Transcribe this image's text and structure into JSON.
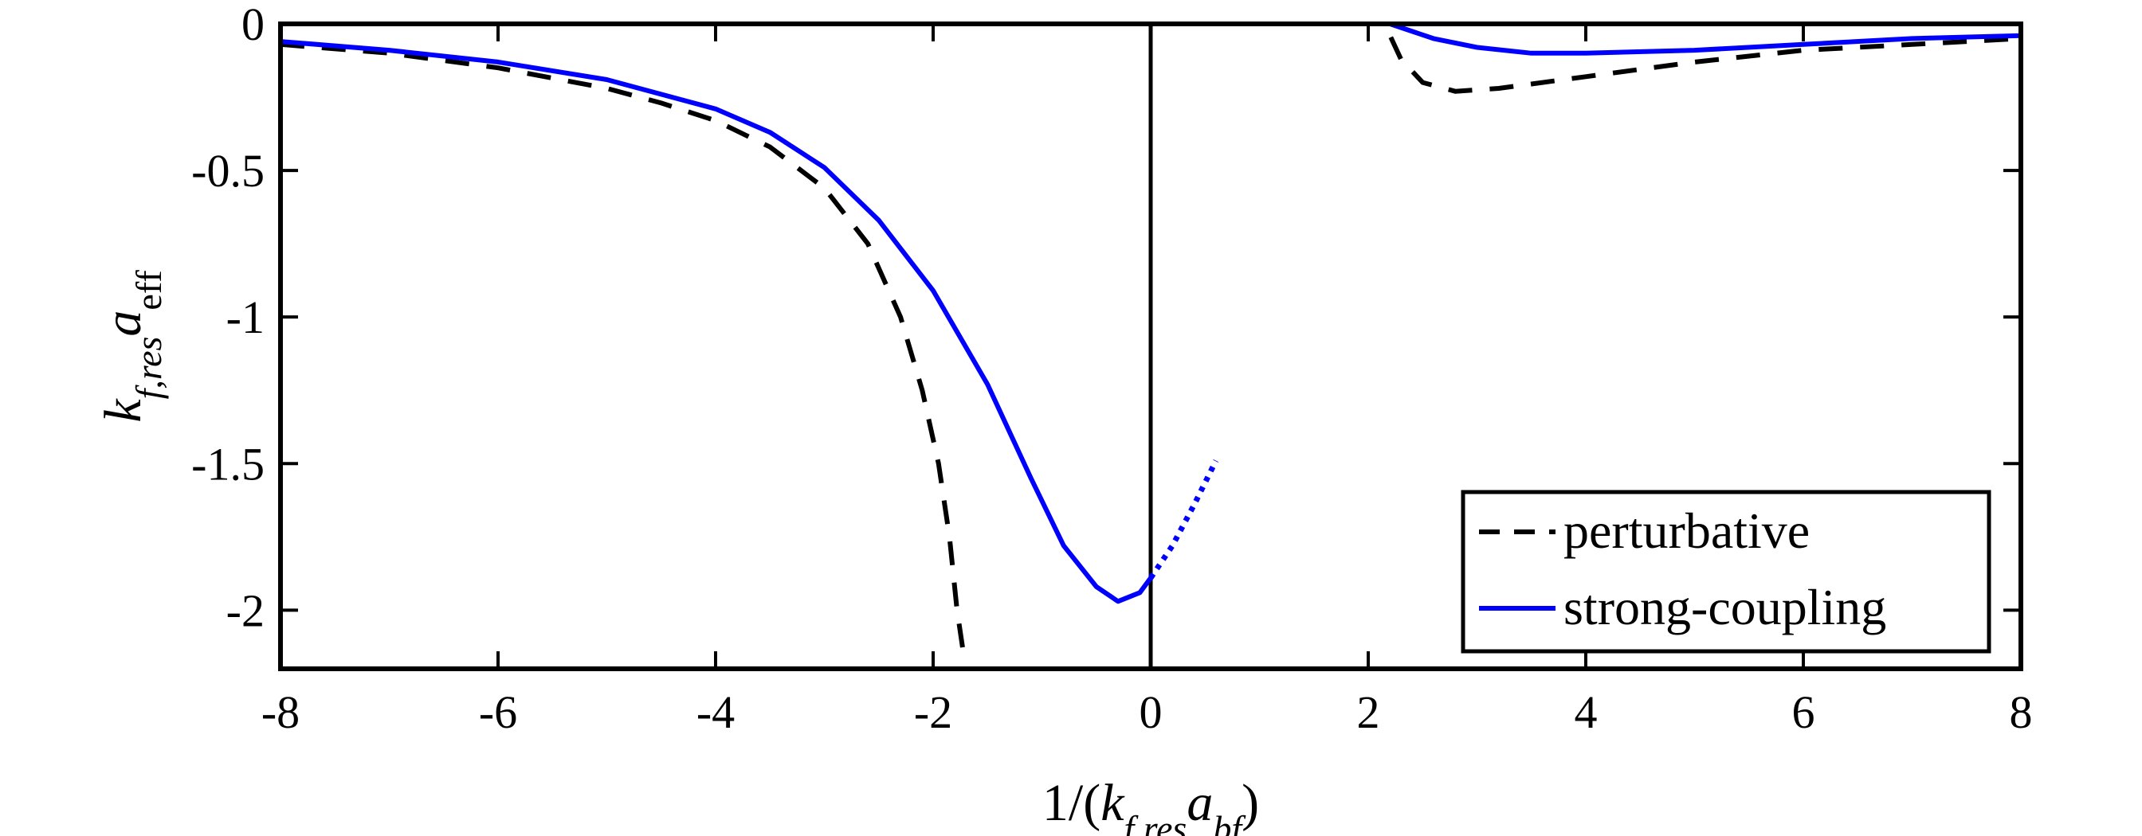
{
  "chart_data": {
    "type": "line",
    "title": "",
    "xlabel": "1/(k_{f,res} a_{bf})",
    "ylabel": "k_{f,res} a_{eff}",
    "xlim": [
      -8,
      8
    ],
    "ylim": [
      -2.2,
      0
    ],
    "xticks": [
      -8,
      -6,
      -4,
      -2,
      0,
      2,
      4,
      6,
      8
    ],
    "xtick_labels": [
      "-8",
      "-6",
      "-4",
      "-2",
      "0",
      "2",
      "4",
      "6",
      "8"
    ],
    "yticks": [
      0,
      -0.5,
      -1,
      -1.5,
      -2
    ],
    "ytick_labels": [
      "0",
      "-0.5",
      "-1",
      "-1.5",
      "-2"
    ],
    "grid": false,
    "legend_position": "bottom-right",
    "reference_line": {
      "x": 0,
      "color": "#000000"
    },
    "series": [
      {
        "name": "perturbative",
        "color": "#000000",
        "style": "dashed",
        "segments": [
          [
            [
              -8,
              -0.07
            ],
            [
              -7,
              -0.1
            ],
            [
              -6,
              -0.15
            ],
            [
              -5,
              -0.22
            ],
            [
              -4.5,
              -0.27
            ],
            [
              -4,
              -0.33
            ],
            [
              -3.5,
              -0.42
            ],
            [
              -3,
              -0.56
            ],
            [
              -2.6,
              -0.75
            ],
            [
              -2.3,
              -1.0
            ],
            [
              -2.1,
              -1.25
            ],
            [
              -1.95,
              -1.5
            ],
            [
              -1.85,
              -1.75
            ],
            [
              -1.78,
              -2.0
            ],
            [
              -1.72,
              -2.15
            ]
          ],
          [
            [
              0,
              0
            ],
            [
              2.15,
              0
            ],
            [
              2.3,
              -0.12
            ],
            [
              2.5,
              -0.2
            ],
            [
              2.8,
              -0.23
            ],
            [
              3.2,
              -0.22
            ],
            [
              4,
              -0.18
            ],
            [
              5,
              -0.13
            ],
            [
              6,
              -0.09
            ],
            [
              7,
              -0.07
            ],
            [
              8,
              -0.05
            ]
          ]
        ]
      },
      {
        "name": "strong-coupling",
        "color": "#0000ff",
        "style": "solid",
        "segments": [
          [
            [
              -8,
              -0.06
            ],
            [
              -7,
              -0.09
            ],
            [
              -6,
              -0.13
            ],
            [
              -5,
              -0.19
            ],
            [
              -4,
              -0.29
            ],
            [
              -3.5,
              -0.37
            ],
            [
              -3,
              -0.49
            ],
            [
              -2.5,
              -0.67
            ],
            [
              -2,
              -0.91
            ],
            [
              -1.5,
              -1.23
            ],
            [
              -1.1,
              -1.55
            ],
            [
              -0.8,
              -1.78
            ],
            [
              -0.5,
              -1.92
            ],
            [
              -0.3,
              -1.97
            ],
            [
              -0.1,
              -1.94
            ],
            [
              0,
              -1.89
            ]
          ],
          [
            [
              2.2,
              0
            ],
            [
              2.6,
              -0.05
            ],
            [
              3,
              -0.08
            ],
            [
              3.5,
              -0.1
            ],
            [
              4,
              -0.1
            ],
            [
              5,
              -0.09
            ],
            [
              6,
              -0.07
            ],
            [
              7,
              -0.05
            ],
            [
              8,
              -0.04
            ]
          ]
        ]
      },
      {
        "name": "",
        "color": "#0000ff",
        "style": "dotted",
        "segments": [
          [
            [
              0,
              -1.89
            ],
            [
              0.2,
              -1.78
            ],
            [
              0.4,
              -1.64
            ],
            [
              0.6,
              -1.49
            ]
          ]
        ]
      }
    ]
  }
}
